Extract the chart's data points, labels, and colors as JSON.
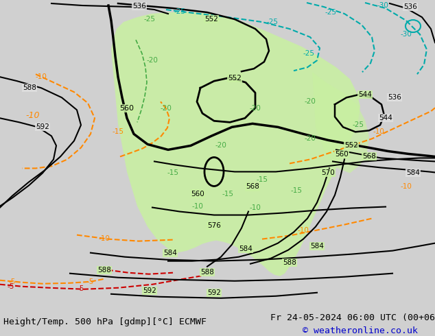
{
  "title_left": "Height/Temp. 500 hPa [gdmp][°C] ECMWF",
  "title_right": "Fr 24-05-2024 06:00 UTC (00+06)",
  "copyright": "© weatheronline.co.uk",
  "bg_color": "#d0d0d0",
  "map_bg": "#e0e0e0",
  "green_fill": "#c8f0a0",
  "font_color_black": "#000000",
  "font_color_blue": "#0000cc",
  "font_color_orange": "#ff8800",
  "font_color_red": "#cc0000",
  "font_color_teal": "#00aaaa",
  "temp_neg_green": "#44aa44",
  "bottom_bar_color": "#c8c8c8",
  "title_fontsize": 9.5,
  "copyright_fontsize": 9.5,
  "label_fontsize": 7.5
}
